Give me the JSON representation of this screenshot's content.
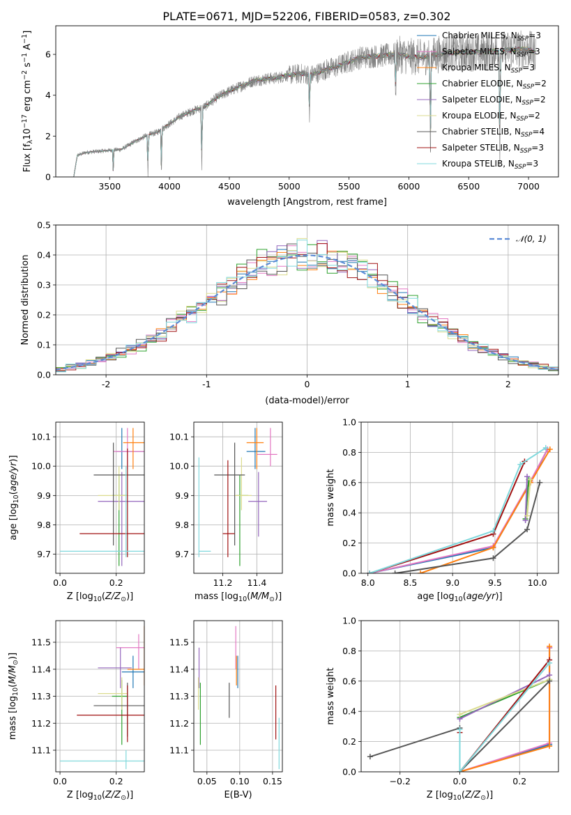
{
  "title": "PLATE=0671, MJD=52206, FIBERID=0583, z=0.302",
  "colors": {
    "Chabrier MILES": "#1f77b4",
    "Salpeter MILES": "#e377c2",
    "Kroupa MILES": "#ff7f0e",
    "Chabrier ELODIE": "#2ca02c",
    "Salpeter ELODIE": "#9467bd",
    "Kroupa ELODIE": "#dbdb8d",
    "Chabrier STELIB": "#555555",
    "Salpeter STELIB": "#a01010",
    "Kroupa STELIB": "#7fd8dc",
    "gauss": "#5b8bd6",
    "spectrum": "#808080"
  },
  "chart_data": [
    {
      "type": "line",
      "panel": "spectrum",
      "xlabel": "wavelength [Angstrom, rest frame]",
      "ylabel": "Flux [f_λ 10^-17 erg cm^-2 s^-1 A^-1]",
      "xlim": [
        3050,
        7250
      ],
      "ylim": [
        0,
        7.4
      ],
      "xticks": [
        3500,
        4000,
        4500,
        5000,
        5500,
        6000,
        6500,
        7000
      ],
      "yticks": [
        0,
        2,
        4,
        6
      ],
      "continuum": {
        "x": [
          3200,
          3230,
          3300,
          3400,
          3500,
          3600,
          3700,
          3800,
          3900,
          4000,
          4100,
          4200,
          4300,
          4400,
          4500,
          4600,
          4700,
          4800,
          4900,
          5000,
          5100,
          5200,
          5300,
          5400,
          5500,
          5600,
          5700,
          5800,
          5900,
          6000,
          6100,
          6200,
          6300,
          6400,
          6500,
          6600,
          6700,
          6800,
          6900,
          7000,
          7050
        ],
        "y": [
          0.0,
          1.05,
          1.2,
          1.25,
          1.3,
          1.35,
          1.7,
          2.0,
          2.2,
          2.6,
          3.0,
          3.25,
          3.45,
          3.9,
          4.2,
          4.45,
          4.7,
          4.8,
          4.85,
          5.0,
          5.05,
          5.0,
          5.25,
          5.4,
          5.65,
          5.85,
          5.9,
          5.95,
          6.0,
          5.9,
          5.85,
          5.95,
          6.05,
          6.1,
          6.1,
          6.1,
          6.15,
          6.2,
          6.25,
          6.25,
          6.1
        ]
      },
      "absorption_dips": [
        {
          "x": 3530,
          "depth": 0.85
        },
        {
          "x": 3820,
          "depth": 1.0
        },
        {
          "x": 3933,
          "depth": 1.0
        },
        {
          "x": 4270,
          "depth": 1.0
        },
        {
          "x": 5170,
          "depth": 0.5
        },
        {
          "x": 5890,
          "depth": 0.4
        },
        {
          "x": 6180,
          "depth": 1.0
        },
        {
          "x": 6760,
          "depth": 1.0
        }
      ],
      "legend": [
        "Chabrier MILES, N_SSP=3",
        "Salpeter MILES, N_SSP=3",
        "Kroupa MILES, N_SSP=3",
        "Chabrier ELODIE, N_SSP=2",
        "Salpeter ELODIE, N_SSP=2",
        "Kroupa ELODIE, N_SSP=2",
        "Chabrier STELIB, N_SSP=4",
        "Salpeter STELIB, N_SSP=3",
        "Kroupa STELIB, N_SSP=3"
      ],
      "legend_keys": [
        "Chabrier MILES",
        "Salpeter MILES",
        "Kroupa MILES",
        "Chabrier ELODIE",
        "Salpeter ELODIE",
        "Kroupa ELODIE",
        "Chabrier STELIB",
        "Salpeter STELIB",
        "Kroupa STELIB"
      ]
    },
    {
      "type": "histogram",
      "panel": "residuals",
      "xlabel": "(data-model)/error",
      "ylabel": "Normed distribution",
      "xlim": [
        -2.5,
        2.5
      ],
      "ylim": [
        0,
        0.5
      ],
      "xticks": [
        -2,
        -1,
        0,
        1,
        2
      ],
      "yticks": [
        0.0,
        0.1,
        0.2,
        0.3,
        0.4,
        0.5
      ],
      "bin_width": 0.1,
      "grid": true,
      "legend": "𝒩(0, 1)",
      "legend_position": "upper right"
    },
    {
      "type": "scatter",
      "panel": "age-vs-Z",
      "xlabel": "Z [log10(Z/Z_sun)]",
      "ylabel": "age [log10(age/yr)]",
      "xlim": [
        -0.015,
        0.3
      ],
      "ylim": [
        9.635,
        10.15
      ],
      "xticks": [
        0.0,
        0.2
      ],
      "yticks": [
        9.7,
        9.8,
        9.9,
        10.0,
        10.1
      ],
      "points": [
        {
          "model": "Chabrier MILES",
          "x": 0.22,
          "y": 10.05,
          "xerr": [
            0.2,
            0.3
          ],
          "yerr": [
            9.99,
            10.13
          ]
        },
        {
          "model": "Salpeter MILES",
          "x": 0.24,
          "y": 10.05,
          "xerr": [
            0.19,
            0.3
          ],
          "yerr": [
            9.99,
            10.13
          ]
        },
        {
          "model": "Kroupa MILES",
          "x": 0.26,
          "y": 10.08,
          "xerr": [
            0.225,
            0.3
          ],
          "yerr": [
            9.99,
            10.13
          ]
        },
        {
          "model": "Chabrier ELODIE",
          "x": 0.21,
          "y": 9.9,
          "xerr": [
            0.185,
            0.24
          ],
          "yerr": [
            9.66,
            9.97
          ]
        },
        {
          "model": "Salpeter ELODIE",
          "x": 0.22,
          "y": 9.88,
          "xerr": [
            0.135,
            0.3
          ],
          "yerr": [
            9.66,
            9.98
          ]
        },
        {
          "model": "Kroupa ELODIE",
          "x": 0.21,
          "y": 9.9,
          "xerr": [
            0.135,
            0.24
          ],
          "yerr": [
            9.85,
            10.0
          ]
        },
        {
          "model": "Chabrier STELIB",
          "x": 0.19,
          "y": 9.97,
          "xerr": [
            0.12,
            0.3
          ],
          "yerr": [
            9.73,
            10.08
          ]
        },
        {
          "model": "Salpeter STELIB",
          "x": 0.24,
          "y": 9.77,
          "xerr": [
            0.07,
            0.3
          ],
          "yerr": [
            9.69,
            10.06
          ]
        },
        {
          "model": "Kroupa STELIB",
          "x": 0.235,
          "y": 9.71,
          "xerr": [
            0.0,
            0.3
          ],
          "yerr": [
            9.69,
            10.0
          ]
        }
      ]
    },
    {
      "type": "scatter",
      "panel": "age-vs-mass",
      "xlabel": "mass [log10(M/M_sun)]",
      "ylabel": "",
      "xlim": [
        11.03,
        11.55
      ],
      "ylim": [
        9.635,
        10.15
      ],
      "xticks": [
        11.2,
        11.4
      ],
      "yticks": [
        9.7,
        9.8,
        9.9,
        10.0,
        10.1
      ],
      "points": [
        {
          "model": "Chabrier MILES",
          "x": 11.39,
          "y": 10.05,
          "xerr": [
            11.34,
            11.45
          ],
          "yerr": [
            9.99,
            10.13
          ]
        },
        {
          "model": "Salpeter MILES",
          "x": 11.48,
          "y": 10.04,
          "xerr": [
            11.4,
            11.52
          ],
          "yerr": [
            10.0,
            10.13
          ]
        },
        {
          "model": "Kroupa MILES",
          "x": 11.4,
          "y": 10.08,
          "xerr": [
            11.34,
            11.44
          ],
          "yerr": [
            9.99,
            10.13
          ]
        },
        {
          "model": "Chabrier ELODIE",
          "x": 11.3,
          "y": 9.9,
          "xerr": [
            11.28,
            11.35
          ],
          "yerr": [
            9.66,
            9.97
          ]
        },
        {
          "model": "Salpeter ELODIE",
          "x": 11.41,
          "y": 9.88,
          "xerr": [
            11.35,
            11.46
          ],
          "yerr": [
            9.76,
            9.98
          ]
        },
        {
          "model": "Kroupa ELODIE",
          "x": 11.31,
          "y": 9.9,
          "xerr": [
            11.27,
            11.37
          ],
          "yerr": [
            9.85,
            10.03
          ]
        },
        {
          "model": "Chabrier STELIB",
          "x": 11.27,
          "y": 9.97,
          "xerr": [
            11.15,
            11.33
          ],
          "yerr": [
            9.73,
            10.08
          ]
        },
        {
          "model": "Salpeter STELIB",
          "x": 11.23,
          "y": 9.77,
          "xerr": [
            11.2,
            11.27
          ],
          "yerr": [
            9.69,
            10.02
          ]
        },
        {
          "model": "Kroupa STELIB",
          "x": 11.06,
          "y": 9.71,
          "xerr": [
            11.06,
            11.13
          ],
          "yerr": [
            9.69,
            10.03
          ]
        }
      ]
    },
    {
      "type": "line",
      "panel": "mass-weight-vs-age",
      "xlabel": "age [log10(age/yr)]",
      "ylabel": "mass weight",
      "xlim": [
        7.92,
        10.25
      ],
      "ylim": [
        0,
        1
      ],
      "xticks": [
        8.0,
        8.5,
        9.0,
        9.5,
        10.0
      ],
      "yticks": [
        0.0,
        0.2,
        0.4,
        0.6,
        0.8,
        1.0
      ],
      "series": [
        {
          "model": "Chabrier MILES",
          "x": [
            8.02,
            9.48,
            9.92,
            10.12
          ],
          "y": [
            0.0,
            0.17,
            0.6,
            0.82
          ]
        },
        {
          "model": "Salpeter MILES",
          "x": [
            8.02,
            9.48,
            9.92,
            10.12
          ],
          "y": [
            0.0,
            0.18,
            0.61,
            0.82
          ]
        },
        {
          "model": "Kroupa MILES",
          "x": [
            8.62,
            9.48,
            9.92,
            10.15
          ],
          "y": [
            0.0,
            0.17,
            0.6,
            0.82
          ]
        },
        {
          "model": "Chabrier ELODIE",
          "x": [
            9.86,
            9.9
          ],
          "y": [
            0.36,
            0.62
          ]
        },
        {
          "model": "Salpeter ELODIE",
          "x": [
            9.86,
            9.88
          ],
          "y": [
            0.35,
            0.64
          ]
        },
        {
          "model": "Kroupa ELODIE",
          "x": [
            9.88,
            9.92
          ],
          "y": [
            0.38,
            0.62
          ]
        },
        {
          "model": "Chabrier STELIB",
          "x": [
            8.32,
            9.48,
            9.88,
            10.03
          ],
          "y": [
            0.0,
            0.1,
            0.29,
            0.6
          ]
        },
        {
          "model": "Salpeter STELIB",
          "x": [
            8.02,
            9.48,
            9.85
          ],
          "y": [
            0.0,
            0.26,
            0.74
          ]
        },
        {
          "model": "Kroupa STELIB",
          "x": [
            8.02,
            9.48,
            9.8,
            10.1
          ],
          "y": [
            0.0,
            0.28,
            0.72,
            0.83
          ]
        }
      ]
    },
    {
      "type": "scatter",
      "panel": "mass-vs-Z",
      "xlabel": "Z [log10(Z/Z_sun)]",
      "ylabel": "mass [log10(M/M_sun)]",
      "xlim": [
        -0.015,
        0.3
      ],
      "ylim": [
        11.02,
        11.58
      ],
      "xticks": [
        0.0,
        0.2
      ],
      "yticks": [
        11.1,
        11.2,
        11.3,
        11.4,
        11.5
      ],
      "points": [
        {
          "model": "Chabrier MILES",
          "x": 0.26,
          "y": 11.39,
          "xerr": [
            0.22,
            0.3
          ],
          "yerr": [
            11.33,
            11.45
          ]
        },
        {
          "model": "Salpeter MILES",
          "x": 0.28,
          "y": 11.48,
          "xerr": [
            0.2,
            0.3
          ],
          "yerr": [
            11.4,
            11.53
          ]
        },
        {
          "model": "Kroupa MILES",
          "x": 0.3,
          "y": 11.4,
          "xerr": [
            0.24,
            0.3
          ],
          "yerr": [
            11.34,
            11.56
          ]
        },
        {
          "model": "Chabrier ELODIE",
          "x": 0.22,
          "y": 11.3,
          "xerr": [
            0.185,
            0.24
          ],
          "yerr": [
            11.12,
            11.36
          ]
        },
        {
          "model": "Salpeter ELODIE",
          "x": 0.215,
          "y": 11.405,
          "xerr": [
            0.135,
            0.255
          ],
          "yerr": [
            11.33,
            11.48
          ]
        },
        {
          "model": "Kroupa ELODIE",
          "x": 0.22,
          "y": 11.31,
          "xerr": [
            0.135,
            0.24
          ],
          "yerr": [
            11.25,
            11.37
          ]
        },
        {
          "model": "Chabrier STELIB",
          "x": 0.24,
          "y": 11.265,
          "xerr": [
            0.12,
            0.3
          ],
          "yerr": [
            11.15,
            11.35
          ]
        },
        {
          "model": "Salpeter STELIB",
          "x": 0.24,
          "y": 11.23,
          "xerr": [
            0.06,
            0.3
          ],
          "yerr": [
            11.13,
            11.34
          ]
        },
        {
          "model": "Kroupa STELIB",
          "x": 0.235,
          "y": 11.06,
          "xerr": [
            0.0,
            0.3
          ],
          "yerr": [
            11.03,
            11.1
          ]
        }
      ]
    },
    {
      "type": "scatter",
      "panel": "mass-vs-EBV",
      "xlabel": "E(B-V)",
      "ylabel": "",
      "xlim": [
        0.03,
        0.165
      ],
      "ylim": [
        11.02,
        11.58
      ],
      "xticks": [
        0.05,
        0.1,
        0.15
      ],
      "yticks": [
        11.1,
        11.2,
        11.3,
        11.4,
        11.5
      ],
      "points": [
        {
          "model": "Chabrier MILES",
          "x": 0.097,
          "y": 11.39,
          "yerr": [
            11.33,
            11.45
          ]
        },
        {
          "model": "Salpeter MILES",
          "x": 0.094,
          "y": 11.48,
          "yerr": [
            11.4,
            11.56
          ]
        },
        {
          "model": "Kroupa MILES",
          "x": 0.095,
          "y": 11.4,
          "yerr": [
            11.34,
            11.45
          ]
        },
        {
          "model": "Chabrier ELODIE",
          "x": 0.04,
          "y": 11.3,
          "yerr": [
            11.12,
            11.35
          ]
        },
        {
          "model": "Salpeter ELODIE",
          "x": 0.038,
          "y": 11.405,
          "yerr": [
            11.33,
            11.48
          ]
        },
        {
          "model": "Kroupa ELODIE",
          "x": 0.037,
          "y": 11.31,
          "yerr": [
            11.25,
            11.37
          ]
        },
        {
          "model": "Chabrier STELIB",
          "x": 0.084,
          "y": 11.265,
          "yerr": [
            11.22,
            11.35
          ]
        },
        {
          "model": "Salpeter STELIB",
          "x": 0.155,
          "y": 11.23,
          "yerr": [
            11.14,
            11.34
          ]
        },
        {
          "model": "Kroupa STELIB",
          "x": 0.16,
          "y": 11.06,
          "yerr": [
            11.03,
            11.22
          ]
        }
      ]
    },
    {
      "type": "line",
      "panel": "mass-weight-vs-Z",
      "xlabel": "Z [log10(Z/Z_sun)]",
      "ylabel": "mass weight",
      "xlim": [
        -0.33,
        0.33
      ],
      "ylim": [
        0,
        1
      ],
      "xticks": [
        -0.2,
        0.0,
        0.2
      ],
      "yticks": [
        0.0,
        0.2,
        0.4,
        0.6,
        0.8,
        1.0
      ],
      "series": [
        {
          "model": "Chabrier MILES",
          "x": [
            0.0,
            0.3,
            0.3
          ],
          "y": [
            0.0,
            0.18,
            0.82
          ]
        },
        {
          "model": "Salpeter MILES",
          "x": [
            0.0,
            0.3,
            0.3
          ],
          "y": [
            0.0,
            0.19,
            0.82
          ]
        },
        {
          "model": "Kroupa MILES",
          "x": [
            0.0,
            0.3,
            0.3
          ],
          "y": [
            0.0,
            0.17,
            0.83
          ]
        },
        {
          "model": "Chabrier ELODIE",
          "x": [
            0.0,
            0.3
          ],
          "y": [
            0.36,
            0.61
          ]
        },
        {
          "model": "Salpeter ELODIE",
          "x": [
            0.0,
            0.3
          ],
          "y": [
            0.35,
            0.64
          ]
        },
        {
          "model": "Kroupa ELODIE",
          "x": [
            0.0,
            0.3
          ],
          "y": [
            0.38,
            0.61
          ]
        },
        {
          "model": "Chabrier STELIB",
          "x": [
            -0.3,
            0.0,
            0.0,
            0.3
          ],
          "y": [
            0.1,
            0.29,
            0.0,
            0.6
          ]
        },
        {
          "model": "Salpeter STELIB",
          "x": [
            0.0,
            0.0,
            0.3
          ],
          "y": [
            0.26,
            0.0,
            0.74
          ]
        },
        {
          "model": "Kroupa STELIB",
          "x": [
            0.0,
            0.0,
            0.3
          ],
          "y": [
            0.28,
            0.0,
            0.72
          ]
        }
      ]
    }
  ]
}
